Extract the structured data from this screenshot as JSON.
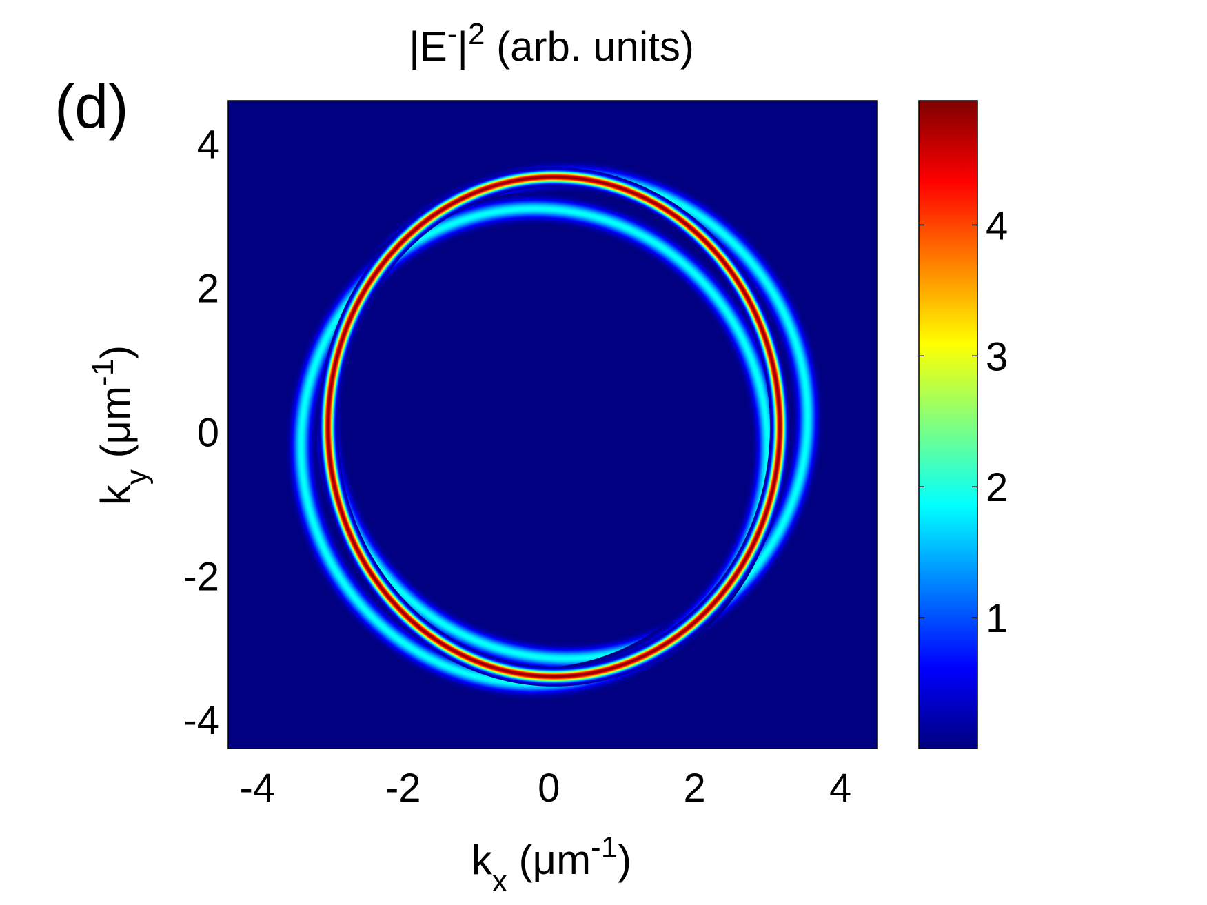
{
  "panel_label": "(d)",
  "chart_data": {
    "type": "heatmap",
    "title": [
      "|E",
      "-",
      "|",
      "2",
      " (arb. units)"
    ],
    "x_label": [
      "k",
      "x",
      " (μm",
      "-1",
      ")"
    ],
    "y_label": [
      "k",
      "y",
      " (μm",
      "-1",
      ")"
    ],
    "xlim": [
      -4.4,
      4.5
    ],
    "ylim": [
      -4.4,
      4.6
    ],
    "xticks": [
      -4,
      -2,
      0,
      2,
      4
    ],
    "yticks": [
      -4,
      -2,
      0,
      2,
      4
    ],
    "colormap": "jet",
    "clim": [
      0,
      4.95
    ],
    "cticks": [
      1,
      2,
      3,
      4
    ],
    "rings": [
      {
        "cx": 0.25,
        "cy": 0.2,
        "rx": 3.3,
        "ry": 3.35,
        "width": 0.08,
        "peak": 1.9
      },
      {
        "cx": -0.2,
        "cy": -0.2,
        "rx": 3.2,
        "ry": 3.3,
        "width": 0.08,
        "peak": 1.9
      },
      {
        "cx": 0.07,
        "cy": 0.07,
        "rx": 3.1,
        "ry": 3.47,
        "width": 0.05,
        "peak": 4.9
      }
    ]
  }
}
